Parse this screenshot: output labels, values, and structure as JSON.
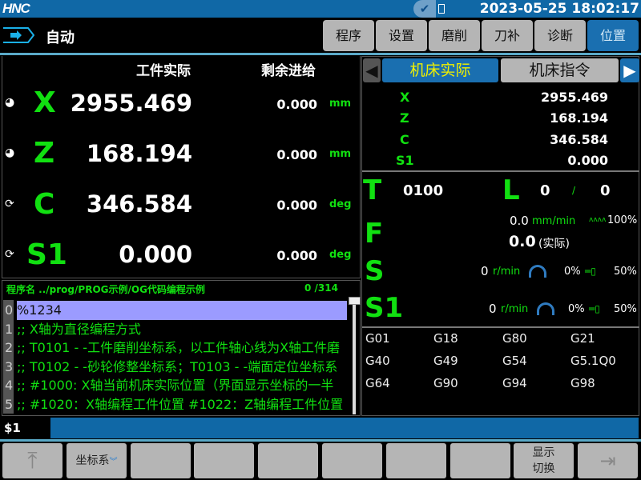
{
  "topbar": {
    "logo": "HNC",
    "datetime": "2023-05-25 18:02:17",
    "status_icon": "check-icon",
    "battery_icon": "battery-icon"
  },
  "header": {
    "mode": "自动",
    "mode_icon": "auto-mode-arrow-icon"
  },
  "nav": [
    {
      "label": "程序"
    },
    {
      "label": "设置"
    },
    {
      "label": "磨削"
    },
    {
      "label": "刀补"
    },
    {
      "label": "诊断"
    },
    {
      "label": "位置",
      "active": true
    }
  ],
  "position": {
    "col_actual": "工件实际",
    "col_remaining": "剩余进给",
    "axes": [
      {
        "name": "X",
        "value": "2955.469",
        "remaining": "0.000",
        "unit": "mm",
        "icon": "half-circle-icon"
      },
      {
        "name": "Z",
        "value": "168.194",
        "remaining": "0.000",
        "unit": "mm",
        "icon": "half-circle-icon"
      },
      {
        "name": "C",
        "value": "346.584",
        "remaining": "0.000",
        "unit": "deg",
        "icon": "rotate-icon"
      },
      {
        "name": "S1",
        "value": "0.000",
        "remaining": "0.000",
        "unit": "deg",
        "icon": "rotate-icon"
      }
    ]
  },
  "program": {
    "name": "程序名 ../prog/PROG示例/OG代码编程示例",
    "count": "0 /314",
    "lines": [
      {
        "n": "0",
        "text": "%1234"
      },
      {
        "n": "1",
        "text": ";; X轴为直径编程方式"
      },
      {
        "n": "2",
        "text": ";; T0101 - -工件磨削坐标系，以工件轴心线为X轴工件磨"
      },
      {
        "n": "3",
        "text": ";; T0102 - -砂轮修整坐标系；T0103 - -端面定位坐标系"
      },
      {
        "n": "4",
        "text": ";; #1000: X轴当前机床实际位置（界面显示坐标的一半"
      },
      {
        "n": "5",
        "text": ";; #1020：X轴编程工件位置  #1022：Z轴编程工件位置"
      }
    ]
  },
  "machine": {
    "tab_active": "机床实际",
    "tab_other": "机床指令",
    "coords": [
      {
        "axis": "X",
        "value": "2955.469"
      },
      {
        "axis": "Z",
        "value": "168.194"
      },
      {
        "axis": "C",
        "value": "346.584"
      },
      {
        "axis": "S1",
        "value": "0.000"
      }
    ],
    "T": {
      "label": "T",
      "value": "0100"
    },
    "L": {
      "label": "L",
      "value1": "0",
      "sep": "/",
      "value2": "0"
    },
    "F": {
      "label": "F",
      "cmd": "0.0",
      "unit": "mm/min",
      "override": "100%",
      "actual": "0.0",
      "actual_label": "(实际)"
    },
    "S": {
      "label": "S",
      "speed": "0",
      "unit": "r/min",
      "load": "0%",
      "override": "50%"
    },
    "S1": {
      "label": "S1",
      "speed": "0",
      "unit": "r/min",
      "load": "0%",
      "override": "50%"
    },
    "gcodes": [
      "G01",
      "G18",
      "G80",
      "G21",
      "G40",
      "G49",
      "G54",
      "G5.1Q0",
      "G64",
      "G90",
      "G94",
      "G98"
    ]
  },
  "command": {
    "label": "$1",
    "value": ""
  },
  "softkeys": [
    "",
    "坐标系",
    "",
    "",
    "",
    "",
    "",
    "",
    "显示\n切换",
    ""
  ],
  "colors": {
    "accent": "#1068a6",
    "axis_green": "#11e011",
    "selected_line": "#9b9bff"
  }
}
